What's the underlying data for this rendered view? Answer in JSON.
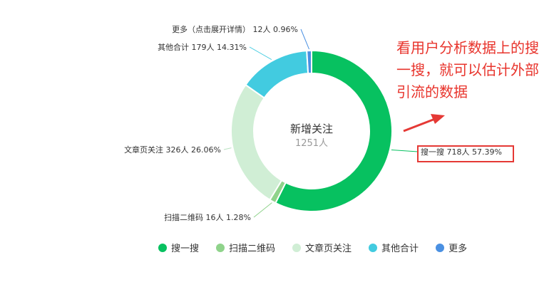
{
  "chart_data": {
    "type": "pie",
    "variant": "donut",
    "center": {
      "title": "新增关注",
      "total": "1251人"
    },
    "slices": [
      {
        "name": "搜一搜",
        "value": 718,
        "percent": 57.39,
        "color": "#07c160",
        "label": "搜一搜 718人 57.39%"
      },
      {
        "name": "扫描二维码",
        "value": 16,
        "percent": 1.28,
        "color": "#8fd38b",
        "label": "扫描二维码 16人 1.28%"
      },
      {
        "name": "文章页关注",
        "value": 326,
        "percent": 26.06,
        "color": "#d0eed5",
        "label": "文章页关注 326人 26.06%"
      },
      {
        "name": "其他合计",
        "value": 179,
        "percent": 14.31,
        "color": "#42cbe0",
        "label": "其他合计 179人 14.31%"
      },
      {
        "name": "更多",
        "value": 12,
        "percent": 0.96,
        "color": "#4a90e2",
        "label": "更多（点击展开详情） 12人 0.96%"
      }
    ],
    "legend": [
      "搜一搜",
      "扫描二维码",
      "文章页关注",
      "其他合计",
      "更多"
    ],
    "legend_position": "bottom"
  },
  "annotation": {
    "lines": [
      "看用户分析数据上的搜",
      "一搜，就可以估计外部",
      "引流的数据"
    ],
    "color": "#e8342c"
  }
}
